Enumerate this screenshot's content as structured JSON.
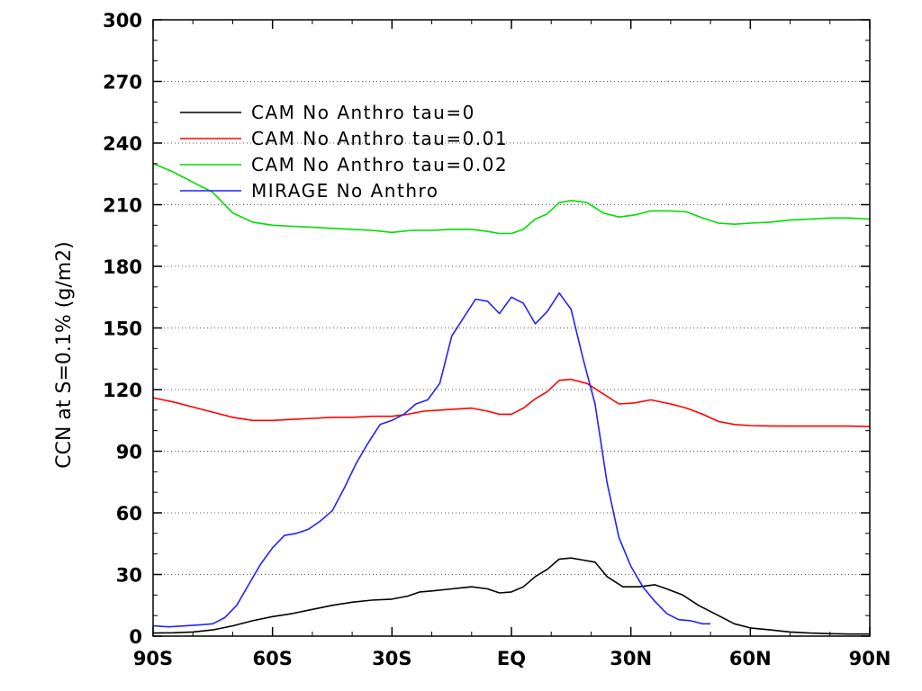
{
  "chart_data": {
    "type": "line",
    "title": "",
    "xlabel": "",
    "ylabel": "CCN at S=0.1% (g/m2)",
    "xlim": [
      -90,
      90
    ],
    "ylim": [
      0,
      300
    ],
    "x_ticks": [
      {
        "value": -90,
        "label": "90S"
      },
      {
        "value": -60,
        "label": "60S"
      },
      {
        "value": -30,
        "label": "30S"
      },
      {
        "value": 0,
        "label": "EQ"
      },
      {
        "value": 30,
        "label": "30N"
      },
      {
        "value": 60,
        "label": "60N"
      },
      {
        "value": 90,
        "label": "90N"
      }
    ],
    "y_ticks": [
      0,
      30,
      60,
      90,
      120,
      150,
      180,
      210,
      240,
      270,
      300
    ],
    "grid": "dotted",
    "legend_position": "top-left",
    "series": [
      {
        "name": "CAM No Anthro tau=0",
        "color": "#000000",
        "points": [
          [
            -90,
            1.5
          ],
          [
            -85,
            1.6
          ],
          [
            -80,
            2
          ],
          [
            -75,
            3
          ],
          [
            -70,
            5
          ],
          [
            -65,
            7.5
          ],
          [
            -60,
            9.5
          ],
          [
            -55,
            11
          ],
          [
            -50,
            13
          ],
          [
            -45,
            15
          ],
          [
            -40,
            16.5
          ],
          [
            -35,
            17.5
          ],
          [
            -30,
            18
          ],
          [
            -26,
            19.5
          ],
          [
            -23,
            21.5
          ],
          [
            -20,
            22
          ],
          [
            -15,
            23
          ],
          [
            -10,
            24
          ],
          [
            -6,
            23
          ],
          [
            -3,
            21
          ],
          [
            0,
            21.5
          ],
          [
            3,
            24
          ],
          [
            6,
            29
          ],
          [
            9,
            32.5
          ],
          [
            12,
            37.5
          ],
          [
            15,
            38
          ],
          [
            18,
            37
          ],
          [
            21,
            36
          ],
          [
            24,
            29
          ],
          [
            28,
            24
          ],
          [
            32,
            24
          ],
          [
            36,
            25
          ],
          [
            39,
            23
          ],
          [
            43,
            20
          ],
          [
            47,
            15
          ],
          [
            52,
            10
          ],
          [
            56,
            6
          ],
          [
            60,
            4
          ],
          [
            65,
            3
          ],
          [
            70,
            2
          ],
          [
            75,
            1.5
          ],
          [
            80,
            1.2
          ],
          [
            85,
            1
          ],
          [
            90,
            1
          ]
        ]
      },
      {
        "name": "CAM No Anthro tau=0.01",
        "color": "#ff0000",
        "points": [
          [
            -90,
            116
          ],
          [
            -85,
            114
          ],
          [
            -80,
            111.5
          ],
          [
            -75,
            109
          ],
          [
            -70,
            106.5
          ],
          [
            -65,
            105
          ],
          [
            -60,
            105
          ],
          [
            -55,
            105.5
          ],
          [
            -50,
            106
          ],
          [
            -45,
            106.5
          ],
          [
            -40,
            106.5
          ],
          [
            -35,
            107
          ],
          [
            -30,
            107
          ],
          [
            -26,
            108
          ],
          [
            -22,
            109.5
          ],
          [
            -18,
            110
          ],
          [
            -14,
            110.5
          ],
          [
            -10,
            111
          ],
          [
            -6,
            109.5
          ],
          [
            -3,
            108
          ],
          [
            0,
            108
          ],
          [
            3,
            111
          ],
          [
            6,
            115.5
          ],
          [
            9,
            119
          ],
          [
            12,
            124.5
          ],
          [
            15,
            125
          ],
          [
            19,
            123
          ],
          [
            23,
            118
          ],
          [
            27,
            113
          ],
          [
            31,
            113.5
          ],
          [
            35,
            115
          ],
          [
            40,
            113
          ],
          [
            44,
            111
          ],
          [
            48,
            108
          ],
          [
            52,
            104.5
          ],
          [
            56,
            103
          ],
          [
            60,
            102.5
          ],
          [
            65,
            102.3
          ],
          [
            70,
            102.2
          ],
          [
            75,
            102.2
          ],
          [
            80,
            102.2
          ],
          [
            85,
            102.2
          ],
          [
            90,
            102
          ]
        ]
      },
      {
        "name": "CAM No Anthro tau=0.02",
        "color": "#00dd00",
        "points": [
          [
            -90,
            230
          ],
          [
            -85,
            226
          ],
          [
            -80,
            221
          ],
          [
            -75,
            216
          ],
          [
            -70,
            206
          ],
          [
            -65,
            201.5
          ],
          [
            -60,
            200
          ],
          [
            -55,
            199.5
          ],
          [
            -50,
            199
          ],
          [
            -45,
            198.5
          ],
          [
            -40,
            198
          ],
          [
            -35,
            197.5
          ],
          [
            -30,
            196.5
          ],
          [
            -25,
            197.5
          ],
          [
            -20,
            197.5
          ],
          [
            -15,
            198
          ],
          [
            -10,
            198
          ],
          [
            -6,
            197
          ],
          [
            -3,
            196
          ],
          [
            0,
            196
          ],
          [
            3,
            198
          ],
          [
            6,
            203
          ],
          [
            9,
            205.5
          ],
          [
            12,
            211
          ],
          [
            15,
            212
          ],
          [
            19,
            211
          ],
          [
            23,
            206
          ],
          [
            27,
            204
          ],
          [
            31,
            205
          ],
          [
            35,
            207
          ],
          [
            40,
            207
          ],
          [
            44,
            206.5
          ],
          [
            48,
            203.5
          ],
          [
            52,
            201
          ],
          [
            56,
            200.5
          ],
          [
            60,
            201
          ],
          [
            65,
            201.5
          ],
          [
            70,
            202.5
          ],
          [
            75,
            203
          ],
          [
            80,
            203.5
          ],
          [
            85,
            203.5
          ],
          [
            90,
            203
          ]
        ]
      },
      {
        "name": "MIRAGE No Anthro",
        "color": "#2222ff",
        "points": [
          [
            -90,
            5
          ],
          [
            -86,
            4.5
          ],
          [
            -82,
            5
          ],
          [
            -78,
            5.5
          ],
          [
            -75,
            6
          ],
          [
            -72,
            9
          ],
          [
            -69,
            15
          ],
          [
            -66,
            25
          ],
          [
            -63,
            35
          ],
          [
            -60,
            43
          ],
          [
            -57,
            49
          ],
          [
            -54,
            50
          ],
          [
            -51,
            52
          ],
          [
            -48,
            56
          ],
          [
            -45,
            61
          ],
          [
            -42,
            72
          ],
          [
            -39,
            84
          ],
          [
            -36,
            94
          ],
          [
            -33,
            103
          ],
          [
            -30,
            105
          ],
          [
            -27,
            108
          ],
          [
            -24,
            113
          ],
          [
            -21,
            115
          ],
          [
            -18,
            123
          ],
          [
            -15,
            146
          ],
          [
            -12,
            155
          ],
          [
            -9,
            164
          ],
          [
            -6,
            163
          ],
          [
            -3,
            157
          ],
          [
            0,
            165
          ],
          [
            3,
            162
          ],
          [
            6,
            152
          ],
          [
            9,
            158
          ],
          [
            12,
            167
          ],
          [
            15,
            159
          ],
          [
            18,
            135
          ],
          [
            21,
            113
          ],
          [
            24,
            75
          ],
          [
            27,
            48
          ],
          [
            30,
            34
          ],
          [
            33,
            24
          ],
          [
            36,
            17
          ],
          [
            39,
            11
          ],
          [
            42,
            8
          ],
          [
            45,
            7.5
          ],
          [
            48,
            6
          ],
          [
            50,
            6
          ]
        ]
      }
    ]
  }
}
